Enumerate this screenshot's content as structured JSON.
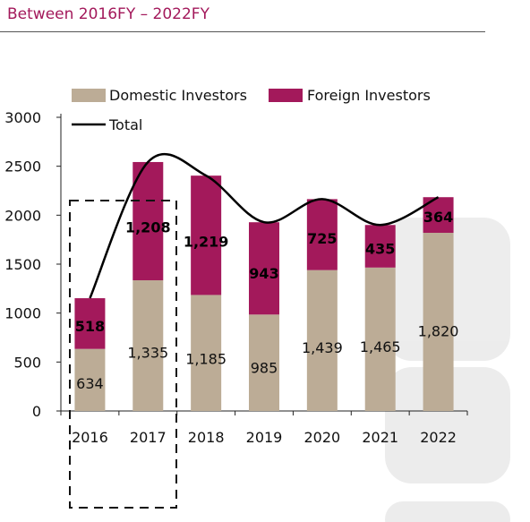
{
  "header": {
    "title": "Between 2016FY – 2022FY"
  },
  "chart_data": {
    "type": "bar",
    "stacked": true,
    "categories": [
      "2016",
      "2017",
      "2018",
      "2019",
      "2020",
      "2021",
      "2022"
    ],
    "series": [
      {
        "name": "Domestic Investors",
        "color": "#bcac96",
        "values": [
          634,
          1335,
          1185,
          985,
          1439,
          1465,
          1820
        ]
      },
      {
        "name": "Foreign Investors",
        "color": "#a3195b",
        "values": [
          518,
          1208,
          1219,
          943,
          725,
          435,
          364
        ]
      }
    ],
    "line": {
      "name": "Total",
      "color": "#000000",
      "values": [
        1152,
        2543,
        2404,
        1928,
        2164,
        1900,
        2184
      ]
    },
    "domestic_labels": [
      "634",
      "1,335",
      "1,185",
      "985",
      "1,439",
      "1,465",
      "1,820"
    ],
    "foreign_labels": [
      "518",
      "1,208",
      "1,219",
      "943",
      "725",
      "435",
      "364"
    ],
    "yticks": [
      "0",
      "500",
      "1000",
      "1500",
      "2000",
      "2500",
      "3000"
    ],
    "ylim": [
      0,
      3000
    ],
    "legend_position": "top",
    "highlight": "dashed box around 2016–2017",
    "title": "",
    "xlabel": "",
    "ylabel": ""
  }
}
